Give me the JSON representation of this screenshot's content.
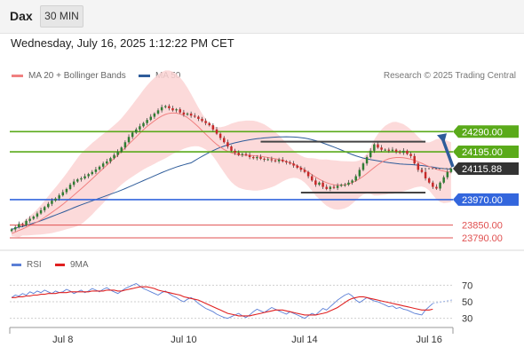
{
  "header": {
    "symbol": "Dax",
    "timeframe": "30 MIN",
    "datetime": "Wednesday, July 16, 2025 1:12:22 PM CET",
    "copyright": "Research © 2025 Trading Central"
  },
  "legend": {
    "ma20_label": "MA 20 + Bollinger Bands",
    "ma50_label": "MA 50",
    "rsi_label": "RSI",
    "rsi_ma_label": "9MA"
  },
  "colors": {
    "ma20": "#f08080",
    "ma50": "#2e5c9a",
    "bollinger_fill": "#fcd4d4",
    "candle_up": "#2f7d32",
    "candle_down": "#c62828",
    "resistance": "#5aaa1a",
    "support": "#3366dd",
    "target": "#e05050",
    "rsi": "#5b7fd6",
    "rsi_ma": "#e02020",
    "arrow": "#2e5c9a",
    "last_price_tag": "#333333"
  },
  "chart_data": [
    {
      "type": "candlestick",
      "panel": "price",
      "x_ticks": [
        "Jul 8",
        "Jul 10",
        "Jul 14",
        "Jul 16"
      ],
      "ylim": [
        23740,
        24500
      ],
      "last_price": 24115.88,
      "levels": [
        {
          "value": 24290.0,
          "label": "24290.00",
          "kind": "resistance"
        },
        {
          "value": 24195.0,
          "label": "24195.00",
          "kind": "resistance"
        },
        {
          "value": 23970.0,
          "label": "23970.00",
          "kind": "support"
        },
        {
          "value": 23850.0,
          "label": "23850.00",
          "kind": "target"
        },
        {
          "value": 23790.0,
          "label": "23790.00",
          "kind": "target"
        }
      ],
      "close": [
        23830,
        23840,
        23855,
        23850,
        23870,
        23880,
        23890,
        23905,
        23920,
        23935,
        23950,
        23965,
        23975,
        23990,
        24005,
        24020,
        24040,
        24055,
        24065,
        24070,
        24080,
        24090,
        24100,
        24112,
        24125,
        24140,
        24150,
        24165,
        24180,
        24195,
        24215,
        24240,
        24265,
        24285,
        24300,
        24315,
        24330,
        24345,
        24360,
        24375,
        24390,
        24405,
        24410,
        24400,
        24390,
        24395,
        24380,
        24370,
        24375,
        24365,
        24360,
        24350,
        24340,
        24330,
        24320,
        24300,
        24280,
        24260,
        24240,
        24220,
        24200,
        24190,
        24180,
        24185,
        24180,
        24170,
        24165,
        24170,
        24162,
        24158,
        24160,
        24155,
        24150,
        24158,
        24150,
        24145,
        24140,
        24130,
        24120,
        24110,
        24100,
        24080,
        24060,
        24040,
        24050,
        24030,
        24020,
        24030,
        24025,
        24035,
        24040,
        24040,
        24050,
        24060,
        24080,
        24110,
        24140,
        24170,
        24200,
        24230,
        24215,
        24205,
        24205,
        24200,
        24205,
        24195,
        24190,
        24200,
        24185,
        24175,
        24140,
        24110,
        24100,
        24070,
        24050,
        24030,
        24022,
        24050,
        24075,
        24100,
        24116
      ],
      "ma20": [
        23810,
        23817,
        23825,
        23832,
        23840,
        23848,
        23856,
        23865,
        23875,
        23886,
        23898,
        23910,
        23922,
        23935,
        23948,
        23962,
        23976,
        23991,
        24006,
        24021,
        24036,
        24052,
        24068,
        24084,
        24100,
        24116,
        24132,
        24148,
        24164,
        24180,
        24197,
        24214,
        24231,
        24248,
        24265,
        24282,
        24299,
        24314,
        24328,
        24341,
        24353,
        24363,
        24371,
        24376,
        24378,
        24377,
        24373,
        24366,
        24356,
        24343,
        24328,
        24312,
        24295,
        24278,
        24261,
        24245,
        24230,
        24217,
        24206,
        24197,
        24190,
        24185,
        24182,
        24180,
        24179,
        24178,
        24177,
        24175,
        24173,
        24171,
        24168,
        24165,
        24162,
        24159,
        24155,
        24150,
        24144,
        24137,
        24129,
        24120,
        24110,
        24099,
        24088,
        24076,
        24066,
        24057,
        24050,
        24044,
        24040,
        24038,
        24038,
        24040,
        24044,
        24050,
        24058,
        24068,
        24080,
        24093,
        24107,
        24121,
        24134,
        24146,
        24155,
        24162,
        24166,
        24168,
        24168,
        24167,
        24164,
        24160,
        24155,
        24148,
        24141,
        24133,
        24126,
        24119,
        24113,
        24108,
        24104,
        24101,
        24099
      ]
    },
    {
      "type": "line",
      "panel": "rsi",
      "ylim": [
        20,
        80
      ],
      "y_ticks": [
        70,
        50,
        30
      ],
      "series": [
        {
          "name": "RSI",
          "values": [
            55,
            58,
            57,
            60,
            58,
            62,
            60,
            63,
            61,
            64,
            62,
            60,
            63,
            61,
            62,
            65,
            63,
            60,
            62,
            64,
            61,
            63,
            66,
            64,
            62,
            65,
            67,
            64,
            62,
            60,
            63,
            66,
            68,
            70,
            72,
            69,
            66,
            64,
            62,
            60,
            58,
            61,
            63,
            60,
            57,
            55,
            52,
            50,
            53,
            55,
            52,
            48,
            45,
            42,
            40,
            38,
            35,
            33,
            31,
            30,
            32,
            34,
            36,
            33,
            31,
            34,
            38,
            41,
            39,
            37,
            40,
            43,
            41,
            39,
            37,
            35,
            38,
            36,
            34,
            32,
            30,
            33,
            36,
            34,
            38,
            42,
            40,
            44,
            48,
            52,
            55,
            58,
            60,
            57,
            52,
            49,
            52,
            55,
            53,
            51,
            50,
            48,
            46,
            44,
            45,
            42,
            43,
            41,
            40,
            38,
            36,
            35,
            34,
            40,
            44,
            48
          ]
        },
        {
          "name": "9MA",
          "values": [
            55,
            55,
            56,
            56,
            57,
            57,
            58,
            58,
            59,
            59,
            60,
            60,
            60,
            61,
            61,
            61,
            62,
            62,
            62,
            62,
            62,
            62,
            63,
            63,
            63,
            63,
            64,
            64,
            64,
            63,
            63,
            64,
            65,
            66,
            67,
            68,
            68,
            68,
            67,
            66,
            64,
            63,
            62,
            61,
            60,
            59,
            58,
            56,
            55,
            54,
            53,
            52,
            50,
            48,
            46,
            44,
            42,
            40,
            38,
            36,
            35,
            34,
            33,
            33,
            33,
            33,
            34,
            35,
            36,
            37,
            38,
            39,
            40,
            40,
            40,
            39,
            38,
            37,
            36,
            35,
            34,
            34,
            34,
            34,
            35,
            36,
            37,
            39,
            41,
            43,
            46,
            49,
            52,
            54,
            55,
            56,
            56,
            55,
            54,
            53,
            52,
            51,
            50,
            49,
            48,
            47,
            46,
            45,
            44,
            43,
            42,
            41,
            40,
            40,
            40,
            41
          ]
        }
      ]
    }
  ]
}
